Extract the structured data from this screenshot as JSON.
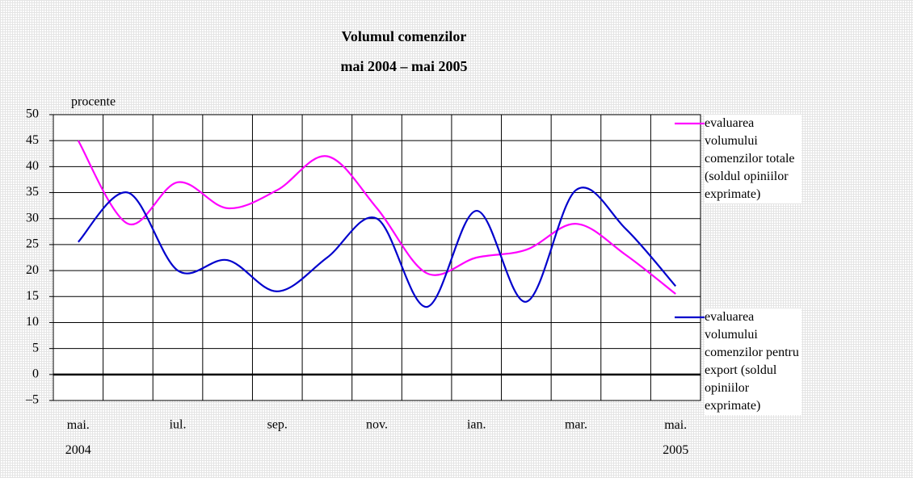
{
  "chart_data": {
    "type": "line",
    "title": "Volumul comenzilor",
    "subtitle": "mai 2004 – mai 2005",
    "y_label": "procente",
    "categories": [
      "mai. 2004",
      null,
      "iul.",
      null,
      "sep.",
      null,
      "nov.",
      null,
      "ian.",
      null,
      "mar.",
      null,
      "mai. 2005"
    ],
    "series": [
      {
        "name": "evaluarea volumului comenzilor totale (soldul opiniilor exprimate)",
        "color": "#ff00ff",
        "values": [
          45,
          29,
          37,
          32,
          35.5,
          42,
          32,
          19.5,
          22.5,
          24,
          29,
          23,
          15.5
        ]
      },
      {
        "name": "evaluarea volumului comenzilor pentru export (soldul opiniilor exprimate)",
        "color": "#0000cc",
        "values": [
          25.5,
          35,
          20,
          22,
          16,
          22.5,
          30,
          13,
          31.5,
          14,
          35.5,
          28,
          17
        ]
      }
    ],
    "ylim": [
      -5,
      50
    ],
    "yticks": [
      {
        "value": -5,
        "label": "–5"
      },
      0,
      5,
      10,
      15,
      20,
      25,
      30,
      35,
      40,
      45,
      50
    ],
    "grid": true,
    "legend": "right"
  }
}
